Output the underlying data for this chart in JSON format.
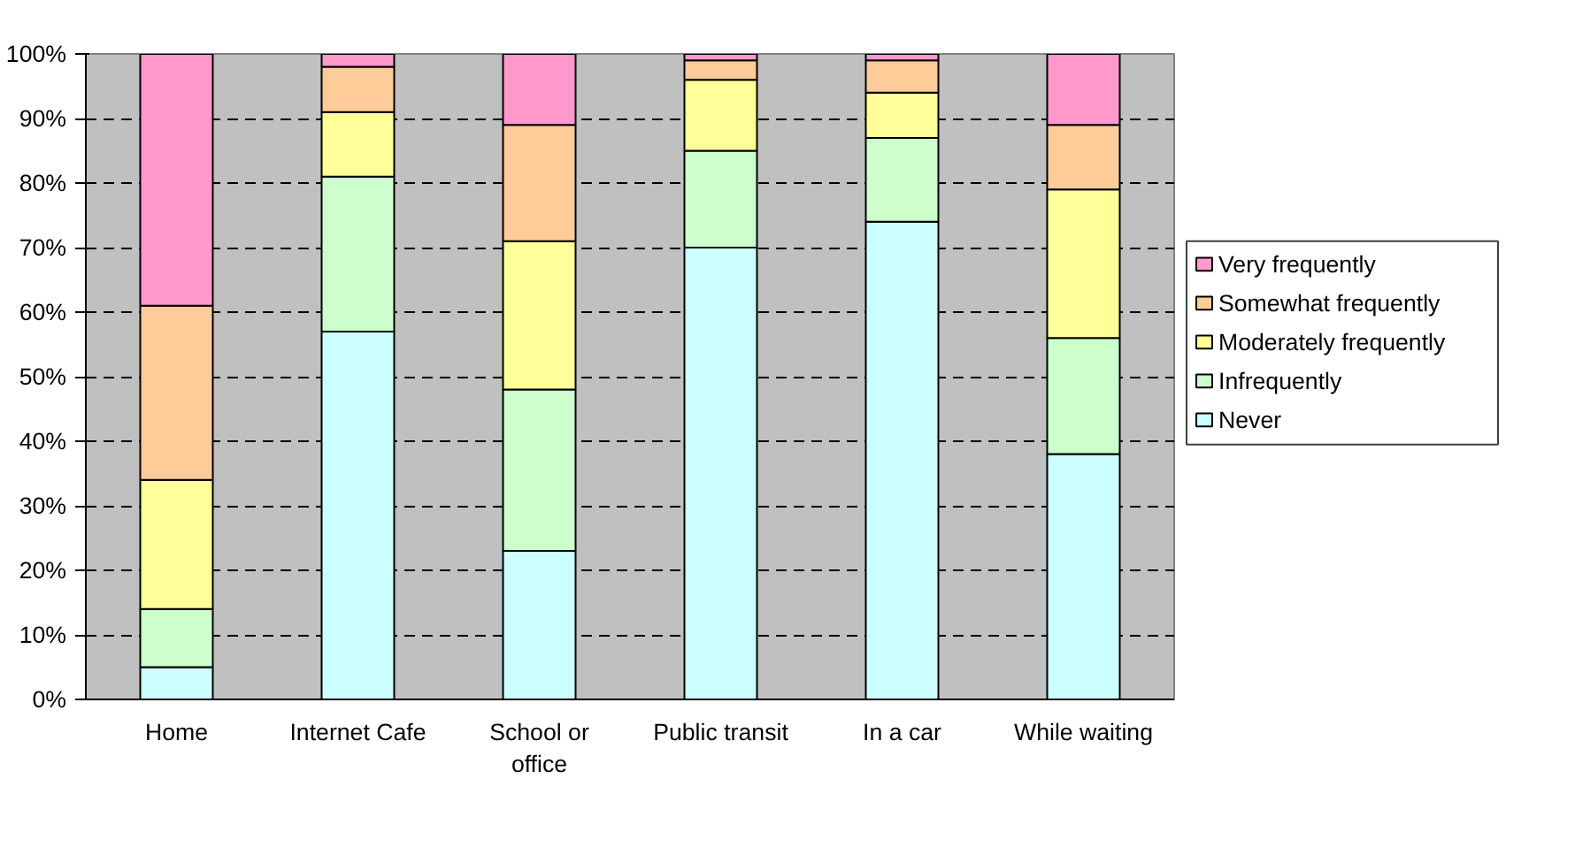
{
  "chart_data": {
    "type": "bar",
    "stacked": true,
    "categories": [
      "Home",
      "Internet Cafe",
      "School or office",
      "Public transit",
      "In a car",
      "While waiting"
    ],
    "series": [
      {
        "name": "Never",
        "color": "#ccffff",
        "values": [
          5,
          57,
          23,
          70,
          74,
          38
        ]
      },
      {
        "name": "Infrequently",
        "color": "#ccffcc",
        "values": [
          9,
          24,
          25,
          15,
          13,
          18
        ]
      },
      {
        "name": "Moderately frequently",
        "color": "#ffff99",
        "values": [
          20,
          10,
          23,
          11,
          7,
          23
        ]
      },
      {
        "name": "Somewhat frequently",
        "color": "#ffcc99",
        "values": [
          27,
          7,
          18,
          3,
          5,
          10
        ]
      },
      {
        "name": "Very frequently",
        "color": "#ff99cc",
        "values": [
          39,
          2,
          11,
          1,
          1,
          11
        ]
      }
    ],
    "ylim": [
      0,
      100
    ],
    "yticks": [
      {
        "value": 0,
        "label": "0%"
      },
      {
        "value": 10,
        "label": "10%"
      },
      {
        "value": 20,
        "label": "20%"
      },
      {
        "value": 30,
        "label": "30%"
      },
      {
        "value": 40,
        "label": "40%"
      },
      {
        "value": 50,
        "label": "50%"
      },
      {
        "value": 60,
        "label": "60%"
      },
      {
        "value": 70,
        "label": "70%"
      },
      {
        "value": 80,
        "label": "80%"
      },
      {
        "value": 90,
        "label": "90%"
      },
      {
        "value": 100,
        "label": "100%"
      }
    ],
    "grid": "y",
    "legend": "right"
  }
}
